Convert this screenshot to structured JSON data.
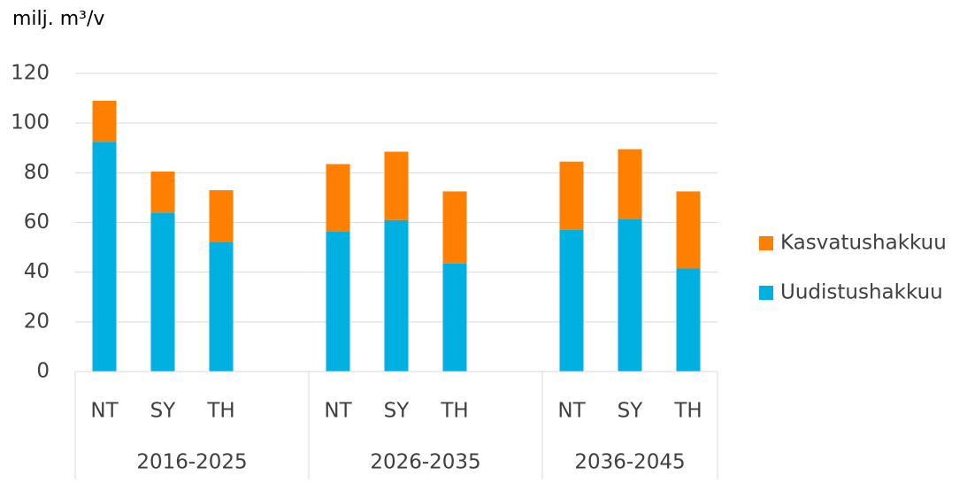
{
  "chart_data": {
    "type": "stacked-bar",
    "title": "milj. m³/v",
    "groups": [
      "2016-2025",
      "2026-2035",
      "2036-2045"
    ],
    "categories": [
      "NT",
      "SY",
      "TH",
      "NT",
      "SY",
      "TH",
      "NT",
      "SY",
      "TH"
    ],
    "series": [
      {
        "name": "Uudistushakkuu",
        "color": "#00b0e0",
        "values": [
          92.5,
          64,
          52,
          56.5,
          61,
          43.5,
          57,
          61.5,
          41.5
        ]
      },
      {
        "name": "Kasvatushakkuu",
        "color": "#ff8000",
        "values": [
          16.5,
          16.5,
          21,
          27,
          27.5,
          29,
          27.5,
          28,
          31
        ]
      }
    ],
    "ylim": [
      0,
      120
    ],
    "yticks": [
      0,
      20,
      40,
      60,
      80,
      100,
      120
    ],
    "grid": true,
    "legend": "right"
  }
}
